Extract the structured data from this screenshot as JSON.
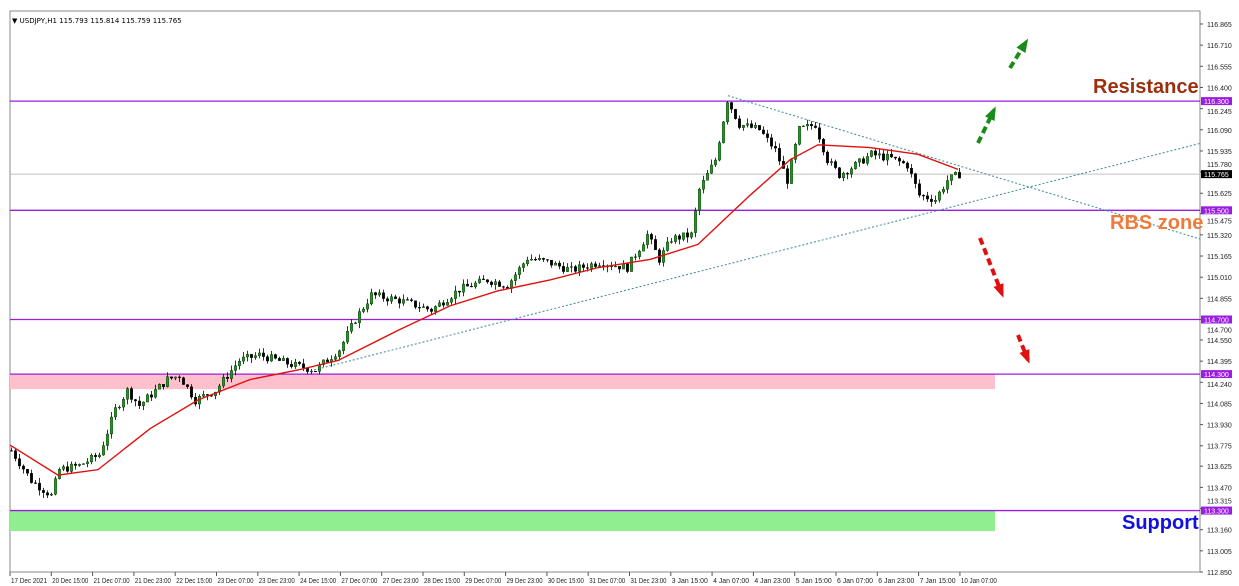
{
  "header": {
    "symbol": "USDJPY,H1",
    "ohlc": "115.793 115.814 115.759 115.765"
  },
  "labels": {
    "resistance": "Resistance",
    "rbs_zone": "RBS zone",
    "support": "Support"
  },
  "colors": {
    "resistance": "#9b2f0e",
    "rbs_zone": "#f07a3a",
    "support": "#1010e0",
    "level_line": "#9a1ee0",
    "ma": "#e01010",
    "pink_zone": "#ffc0cb",
    "green_zone": "#90ee90",
    "arrow_up": "#1a8a1a",
    "arrow_down": "#e01010",
    "trendline": "#3a8a9a"
  },
  "chart_data": {
    "type": "candlestick",
    "title": "",
    "ylim": [
      112.85,
      116.865
    ],
    "y_ticks": [
      "116.865",
      "116.710",
      "116.555",
      "116.400",
      "116.245",
      "116.090",
      "115.935",
      "115.780",
      "115.625",
      "115.475",
      "115.320",
      "115.165",
      "115.010",
      "114.855",
      "114.700",
      "114.550",
      "114.395",
      "114.240",
      "114.085",
      "113.930",
      "113.775",
      "113.625",
      "113.470",
      "113.315",
      "113.160",
      "113.005",
      "112.850"
    ],
    "x_ticks": [
      "17 Dec 2021",
      "20 Dec 15:00",
      "21 Dec 07:00",
      "21 Dec 23:00",
      "22 Dec 15:00",
      "23 Dec 07:00",
      "23 Dec 23:00",
      "24 Dec 15:00",
      "27 Dec 07:00",
      "27 Dec 23:00",
      "28 Dec 15:00",
      "29 Dec 07:00",
      "29 Dec 23:00",
      "30 Dec 15:00",
      "31 Dec 07:00",
      "31 Dec 23:00",
      "3 Jan 15:00",
      "4 Jan 07:00",
      "4 Jan 23:00",
      "5 Jan 15:00",
      "6 Jan 07:00",
      "6 Jan 23:00",
      "7 Jan 15:00",
      "10 Jan 07:00"
    ],
    "price_path": [
      [
        0,
        113.74
      ],
      [
        5,
        113.52
      ],
      [
        10,
        113.41
      ],
      [
        12,
        113.6
      ],
      [
        17,
        113.63
      ],
      [
        22,
        113.71
      ],
      [
        26,
        114.04
      ],
      [
        29,
        114.18
      ],
      [
        32,
        114.07
      ],
      [
        39,
        114.26
      ],
      [
        42,
        114.29
      ],
      [
        46,
        114.11
      ],
      [
        51,
        114.18
      ],
      [
        57,
        114.4
      ],
      [
        62,
        114.44
      ],
      [
        70,
        114.37
      ],
      [
        76,
        114.33
      ],
      [
        82,
        114.48
      ],
      [
        86,
        114.7
      ],
      [
        90,
        114.88
      ],
      [
        97,
        114.84
      ],
      [
        105,
        114.77
      ],
      [
        112,
        114.92
      ],
      [
        119,
        114.99
      ],
      [
        124,
        114.95
      ],
      [
        129,
        115.15
      ],
      [
        134,
        115.12
      ],
      [
        140,
        115.06
      ],
      [
        147,
        115.12
      ],
      [
        154,
        115.08
      ],
      [
        159,
        115.32
      ],
      [
        162,
        115.14
      ],
      [
        165,
        115.29
      ],
      [
        170,
        115.32
      ],
      [
        172,
        115.65
      ],
      [
        176,
        115.87
      ],
      [
        179,
        116.31
      ],
      [
        182,
        116.13
      ],
      [
        187,
        116.09
      ],
      [
        191,
        115.94
      ],
      [
        194,
        115.72
      ],
      [
        197,
        116.09
      ],
      [
        201,
        116.13
      ],
      [
        204,
        115.87
      ],
      [
        207,
        115.76
      ],
      [
        211,
        115.83
      ],
      [
        215,
        115.91
      ],
      [
        220,
        115.88
      ],
      [
        224,
        115.83
      ],
      [
        227,
        115.61
      ],
      [
        231,
        115.58
      ],
      [
        234,
        115.72
      ],
      [
        237,
        115.765
      ]
    ],
    "moving_average": [
      [
        0,
        113.78
      ],
      [
        12,
        113.56
      ],
      [
        22,
        113.6
      ],
      [
        35,
        113.9
      ],
      [
        47,
        114.11
      ],
      [
        60,
        114.26
      ],
      [
        72,
        114.33
      ],
      [
        82,
        114.4
      ],
      [
        97,
        114.62
      ],
      [
        110,
        114.8
      ],
      [
        122,
        114.91
      ],
      [
        135,
        114.99
      ],
      [
        147,
        115.08
      ],
      [
        160,
        115.14
      ],
      [
        172,
        115.25
      ],
      [
        185,
        115.61
      ],
      [
        195,
        115.87
      ],
      [
        202,
        115.98
      ],
      [
        215,
        115.96
      ],
      [
        227,
        115.91
      ],
      [
        237,
        115.8
      ]
    ],
    "levels": [
      116.3,
      115.5,
      114.7,
      114.3,
      113.3
    ],
    "current_price": 115.765,
    "zones": [
      {
        "from": 114.19,
        "to": 114.3,
        "color": "pink"
      },
      {
        "from": 113.15,
        "to": 113.3,
        "color": "green"
      }
    ],
    "trendlines": [
      {
        "from": [
          179.5,
          116.34
        ],
        "to": [
          297.5,
          115.29
        ]
      },
      {
        "from": [
          76,
          114.33
        ],
        "to": [
          297.5,
          115.99
        ]
      }
    ]
  }
}
